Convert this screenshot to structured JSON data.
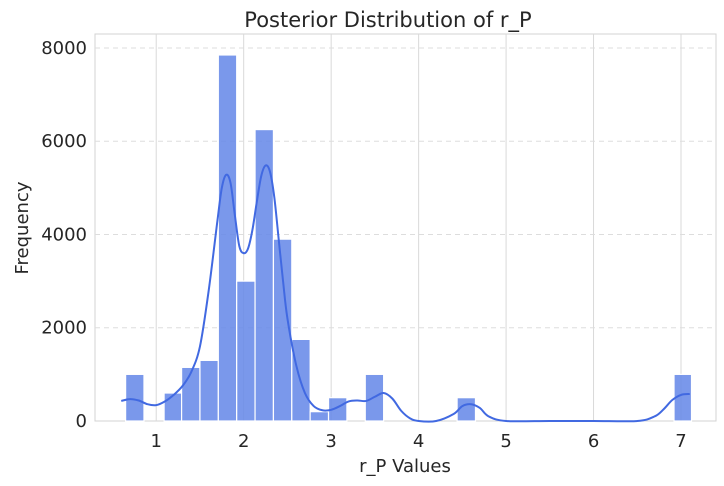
{
  "chart_data": {
    "type": "bar",
    "title": "Posterior Distribution of r_P",
    "xlabel": "r_P Values",
    "ylabel": "Frequency",
    "xlim": [
      0.3,
      7.4
    ],
    "ylim": [
      0,
      8300
    ],
    "x_ticks": [
      1,
      2,
      3,
      4,
      5,
      6,
      7
    ],
    "y_ticks": [
      0,
      2000,
      4000,
      6000,
      8000
    ],
    "grid": {
      "x": true,
      "y": true,
      "y_dashed": true
    },
    "bar_color": "#6689e8",
    "kde_color": "#4169e1",
    "bins": [
      {
        "x0": 0.65,
        "x1": 0.86,
        "value": 1000
      },
      {
        "x0": 1.09,
        "x1": 1.29,
        "value": 600
      },
      {
        "x0": 1.29,
        "x1": 1.5,
        "value": 1150
      },
      {
        "x0": 1.5,
        "x1": 1.71,
        "value": 1300
      },
      {
        "x0": 1.71,
        "x1": 1.92,
        "value": 7850
      },
      {
        "x0": 1.92,
        "x1": 2.13,
        "value": 3000
      },
      {
        "x0": 2.13,
        "x1": 2.34,
        "value": 6250
      },
      {
        "x0": 2.34,
        "x1": 2.55,
        "value": 3900
      },
      {
        "x0": 2.55,
        "x1": 2.76,
        "value": 1750
      },
      {
        "x0": 2.76,
        "x1": 2.97,
        "value": 200
      },
      {
        "x0": 2.97,
        "x1": 3.18,
        "value": 500
      },
      {
        "x0": 3.39,
        "x1": 3.6,
        "value": 1000
      },
      {
        "x0": 4.44,
        "x1": 4.65,
        "value": 500
      },
      {
        "x0": 6.92,
        "x1": 7.12,
        "value": 1000
      }
    ],
    "kde": {
      "x": [
        0.6,
        0.7,
        0.8,
        0.9,
        1.0,
        1.1,
        1.2,
        1.3,
        1.4,
        1.5,
        1.6,
        1.7,
        1.75,
        1.8,
        1.85,
        1.9,
        1.95,
        2.0,
        2.05,
        2.1,
        2.15,
        2.2,
        2.25,
        2.3,
        2.35,
        2.4,
        2.45,
        2.5,
        2.6,
        2.7,
        2.8,
        2.9,
        3.0,
        3.1,
        3.2,
        3.3,
        3.4,
        3.5,
        3.6,
        3.7,
        3.8,
        3.9,
        4.0,
        4.2,
        4.4,
        4.5,
        4.6,
        4.7,
        4.8,
        5.0,
        5.5,
        6.0,
        6.5,
        6.7,
        6.8,
        6.9,
        7.0,
        7.1
      ],
      "y": [
        430,
        470,
        440,
        360,
        340,
        420,
        560,
        750,
        1050,
        1600,
        2800,
        4300,
        5000,
        5280,
        5100,
        4400,
        3750,
        3600,
        3700,
        4100,
        4700,
        5250,
        5480,
        5350,
        4800,
        3900,
        3000,
        2200,
        1200,
        600,
        320,
        230,
        240,
        320,
        420,
        440,
        430,
        520,
        600,
        480,
        220,
        60,
        0,
        0,
        150,
        320,
        360,
        280,
        100,
        0,
        0,
        0,
        0,
        100,
        250,
        450,
        560,
        580
      ]
    }
  }
}
